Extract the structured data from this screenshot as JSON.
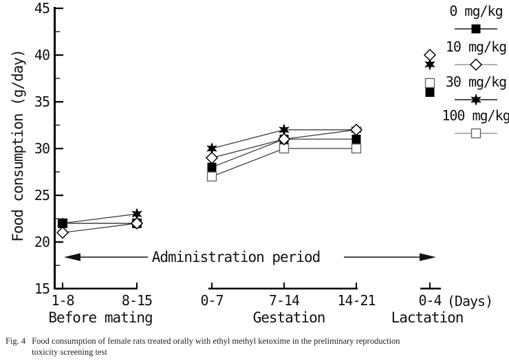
{
  "caption": {
    "tag": "Fig. 4",
    "text": "Food consumption of female rats treated orally with ethyl methyl ketoxime in the preliminary reproduction toxicity screening test"
  },
  "chart_data": {
    "type": "line",
    "title": "",
    "ylabel": "Food consumption (g/day)",
    "xunit_label": "(Days)",
    "annotation": "Administration period",
    "ylim": [
      15,
      45
    ],
    "yticks": [
      45,
      40,
      35,
      30,
      25,
      20,
      15
    ],
    "yminor_ticks": [
      42.5,
      37.5,
      32.5,
      27.5,
      22.5,
      17.5
    ],
    "grid": "off",
    "legend_position": "top-right",
    "groups": [
      {
        "name": "Before mating",
        "ticks": [
          "1-8",
          "8-15"
        ]
      },
      {
        "name": "Gestation",
        "ticks": [
          "0-7",
          "7-14",
          "14-21"
        ]
      },
      {
        "name": "Lactation",
        "ticks": [
          "0-4"
        ]
      }
    ],
    "series": [
      {
        "name": "0 mg/kg",
        "marker": "filled-square",
        "legend_line_color": "#1a1a1a",
        "values": [
          [
            22,
            22
          ],
          [
            28,
            31,
            31
          ],
          [
            36
          ]
        ]
      },
      {
        "name": "10 mg/kg",
        "marker": "open-diamond",
        "legend_line_color": "#9a9a9a",
        "values": [
          [
            21,
            22
          ],
          [
            29,
            31,
            32
          ],
          [
            40
          ]
        ]
      },
      {
        "name": "30 mg/kg",
        "marker": "filled-star",
        "legend_line_color": "#1a1a1a",
        "values": [
          [
            22,
            23
          ],
          [
            30,
            32,
            32
          ],
          [
            39
          ]
        ]
      },
      {
        "name": "100 mg/kg",
        "marker": "open-square",
        "legend_line_color": "#9a9a9a",
        "values": [
          [
            22,
            22
          ],
          [
            27,
            30,
            30
          ],
          [
            37
          ]
        ]
      }
    ],
    "line_color": "#3c3c3c",
    "marker_color": "#000000",
    "axis_color": "#000000"
  }
}
